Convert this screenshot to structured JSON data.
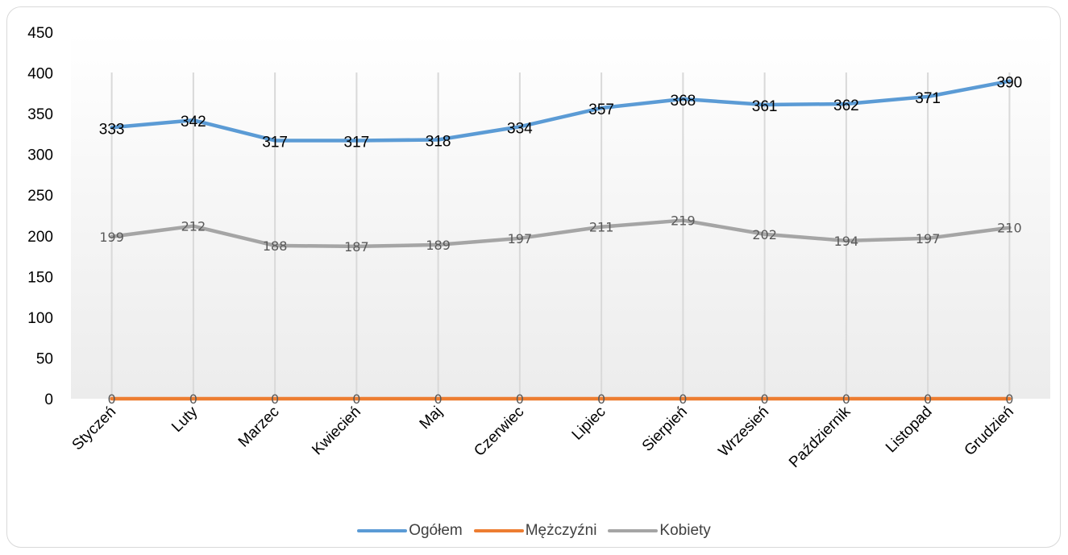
{
  "chart_data": {
    "type": "line",
    "categories": [
      "Styczeń",
      "Luty",
      "Marzec",
      "Kwiecień",
      "Maj",
      "Czerwiec",
      "Lipiec",
      "Sierpień",
      "Wrzesień",
      "Październik",
      "Listopad",
      "Grudzień"
    ],
    "series": [
      {
        "name": "Ogółem",
        "color": "#5b9bd5",
        "values": [
          333,
          342,
          317,
          317,
          318,
          334,
          357,
          368,
          361,
          362,
          371,
          390
        ]
      },
      {
        "name": "Mężczyźni",
        "color": "#ed7d31",
        "values": [
          0,
          0,
          0,
          0,
          0,
          0,
          0,
          0,
          0,
          0,
          0,
          0
        ]
      },
      {
        "name": "Kobiety",
        "color": "#a5a5a5",
        "values": [
          199,
          212,
          188,
          187,
          189,
          197,
          211,
          219,
          202,
          194,
          197,
          210
        ]
      }
    ],
    "ylim": [
      0,
      450
    ],
    "yticks": [
      0,
      50,
      100,
      150,
      200,
      250,
      300,
      350,
      400,
      450
    ],
    "xlabel": "",
    "ylabel": "",
    "title": "",
    "grid": "vertical",
    "legend": "bottom"
  }
}
